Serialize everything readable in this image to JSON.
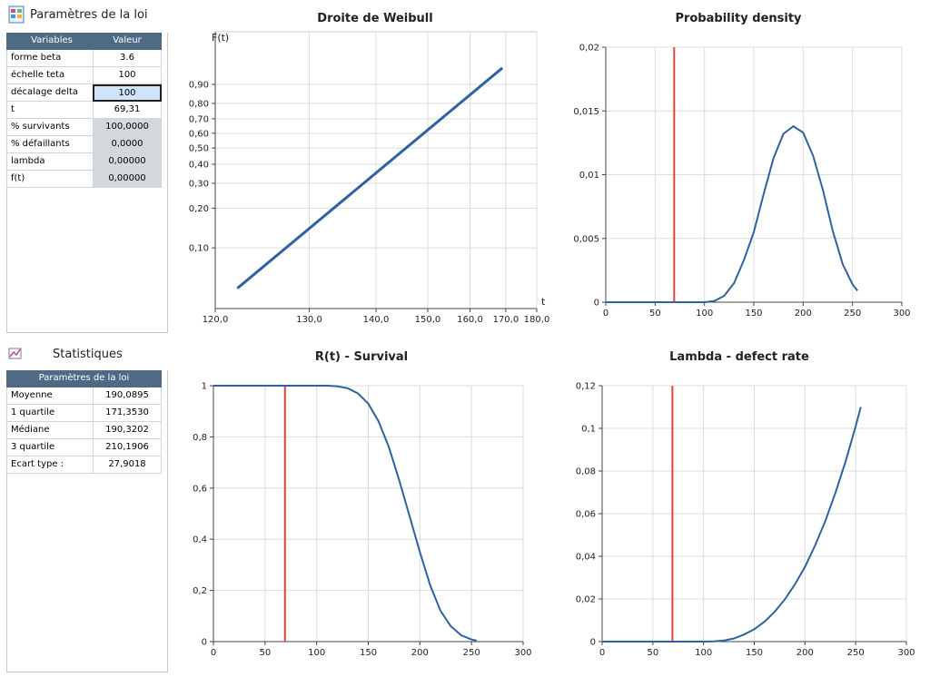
{
  "params": {
    "title": "Paramètres de la loi",
    "columns": [
      "Variables",
      "Valeur"
    ],
    "rows": [
      [
        "forme beta",
        "3.6"
      ],
      [
        "échelle teta",
        "100"
      ],
      [
        "décalage delta",
        "100"
      ],
      [
        "t",
        "69,31"
      ],
      [
        "% survivants",
        "100,0000"
      ],
      [
        "% défaillants",
        "0,0000"
      ],
      [
        "lambda",
        "0,00000"
      ],
      [
        "f(t)",
        "0,00000"
      ]
    ]
  },
  "stats": {
    "title": "Statistiques",
    "header": "Paramètres de la loi",
    "rows": [
      [
        "Moyenne",
        "190,0895"
      ],
      [
        "1 quartile",
        "171,3530"
      ],
      [
        "Médiane",
        "190,3202"
      ],
      [
        "3 quartile",
        "210,1906"
      ],
      [
        "Ecart type :",
        "27,9018"
      ]
    ]
  },
  "chart_data": [
    {
      "type": "line",
      "title": "Droite de Weibull",
      "xlabel": "t",
      "ylabel": "F(t)",
      "xscale": "log",
      "yscale": "weibull",
      "x": [
        122,
        169
      ],
      "values": [
        0.048,
        0.957
      ],
      "color": "#2f62a0",
      "xlim": [
        120,
        180
      ],
      "xticks": [
        {
          "value": 120,
          "label": "120,0"
        },
        {
          "value": 130,
          "label": "130,0"
        },
        {
          "value": 140,
          "label": "140,0"
        },
        {
          "value": 150,
          "label": "150,0"
        },
        {
          "value": 160,
          "label": "160,0"
        },
        {
          "value": 170,
          "label": "170,0"
        },
        {
          "value": 180,
          "label": "180,0"
        }
      ],
      "ylim": [
        0.033,
        0.998
      ],
      "yticks": [
        {
          "value": 0.1,
          "label": "0,10"
        },
        {
          "value": 0.2,
          "label": "0,20"
        },
        {
          "value": 0.3,
          "label": "0,30"
        },
        {
          "value": 0.4,
          "label": "0,40"
        },
        {
          "value": 0.5,
          "label": "0,50"
        },
        {
          "value": 0.6,
          "label": "0,60"
        },
        {
          "value": 0.7,
          "label": "0,70"
        },
        {
          "value": 0.8,
          "label": "0,80"
        },
        {
          "value": 0.9,
          "label": "0,90"
        }
      ],
      "grid": true
    },
    {
      "type": "line",
      "title": "Probability density",
      "color": "#2f62a0",
      "marker": 69.31,
      "marker_color": "#e8413c",
      "x": [
        0,
        100,
        110,
        120,
        130,
        140,
        150,
        160,
        170,
        180,
        190,
        200,
        210,
        220,
        230,
        240,
        250,
        255
      ],
      "values": [
        0,
        0,
        0.0001,
        0.0005,
        0.0015,
        0.0033,
        0.0055,
        0.0085,
        0.0113,
        0.0132,
        0.0138,
        0.0133,
        0.0115,
        0.0088,
        0.0056,
        0.003,
        0.0014,
        0.0009
      ],
      "xlim": [
        0,
        300
      ],
      "xticks": [
        0,
        50,
        100,
        150,
        200,
        250,
        300
      ],
      "ylim": [
        0,
        0.02
      ],
      "yticks": [
        0,
        {
          "value": 0.005,
          "label": "0,005"
        },
        {
          "value": 0.01,
          "label": "0,01"
        },
        {
          "value": 0.015,
          "label": "0,015"
        },
        {
          "value": 0.02,
          "label": "0,02"
        }
      ],
      "grid": true
    },
    {
      "type": "line",
      "title": "R(t) - Survival",
      "color": "#2f62a0",
      "marker": 69.31,
      "marker_color": "#e8413c",
      "x": [
        0,
        100,
        110,
        120,
        130,
        140,
        150,
        160,
        170,
        180,
        190,
        200,
        210,
        220,
        230,
        240,
        250,
        255
      ],
      "values": [
        1,
        1,
        0.9999,
        0.998,
        0.99,
        0.97,
        0.93,
        0.86,
        0.76,
        0.63,
        0.49,
        0.35,
        0.22,
        0.12,
        0.06,
        0.025,
        0.008,
        0.004
      ],
      "xlim": [
        0,
        300
      ],
      "xticks": [
        0,
        50,
        100,
        150,
        200,
        250,
        300
      ],
      "ylim": [
        0,
        1
      ],
      "yticks": [
        0,
        {
          "value": 0.2,
          "label": "0,2"
        },
        {
          "value": 0.4,
          "label": "0,4"
        },
        {
          "value": 0.6,
          "label": "0,6"
        },
        {
          "value": 0.8,
          "label": "0,8"
        },
        1
      ],
      "grid": true
    },
    {
      "type": "line",
      "title": "Lambda - defect rate",
      "color": "#2f62a0",
      "marker": 69.31,
      "marker_color": "#e8413c",
      "x": [
        0,
        100,
        110,
        120,
        130,
        140,
        150,
        160,
        170,
        180,
        190,
        200,
        210,
        220,
        230,
        240,
        250,
        255
      ],
      "values": [
        0,
        0,
        0.0001,
        0.0005,
        0.0015,
        0.0033,
        0.0058,
        0.0093,
        0.0139,
        0.0197,
        0.0268,
        0.035,
        0.0451,
        0.0565,
        0.0697,
        0.0844,
        0.101,
        0.11
      ],
      "xlim": [
        0,
        300
      ],
      "xticks": [
        0,
        50,
        100,
        150,
        200,
        250,
        300
      ],
      "ylim": [
        0,
        0.12
      ],
      "yticks": [
        0,
        {
          "value": 0.02,
          "label": "0,02"
        },
        {
          "value": 0.04,
          "label": "0,04"
        },
        {
          "value": 0.06,
          "label": "0,06"
        },
        {
          "value": 0.08,
          "label": "0,08"
        },
        {
          "value": 0.1,
          "label": "0,1"
        },
        {
          "value": 0.12,
          "label": "0,12"
        }
      ],
      "grid": true
    }
  ]
}
